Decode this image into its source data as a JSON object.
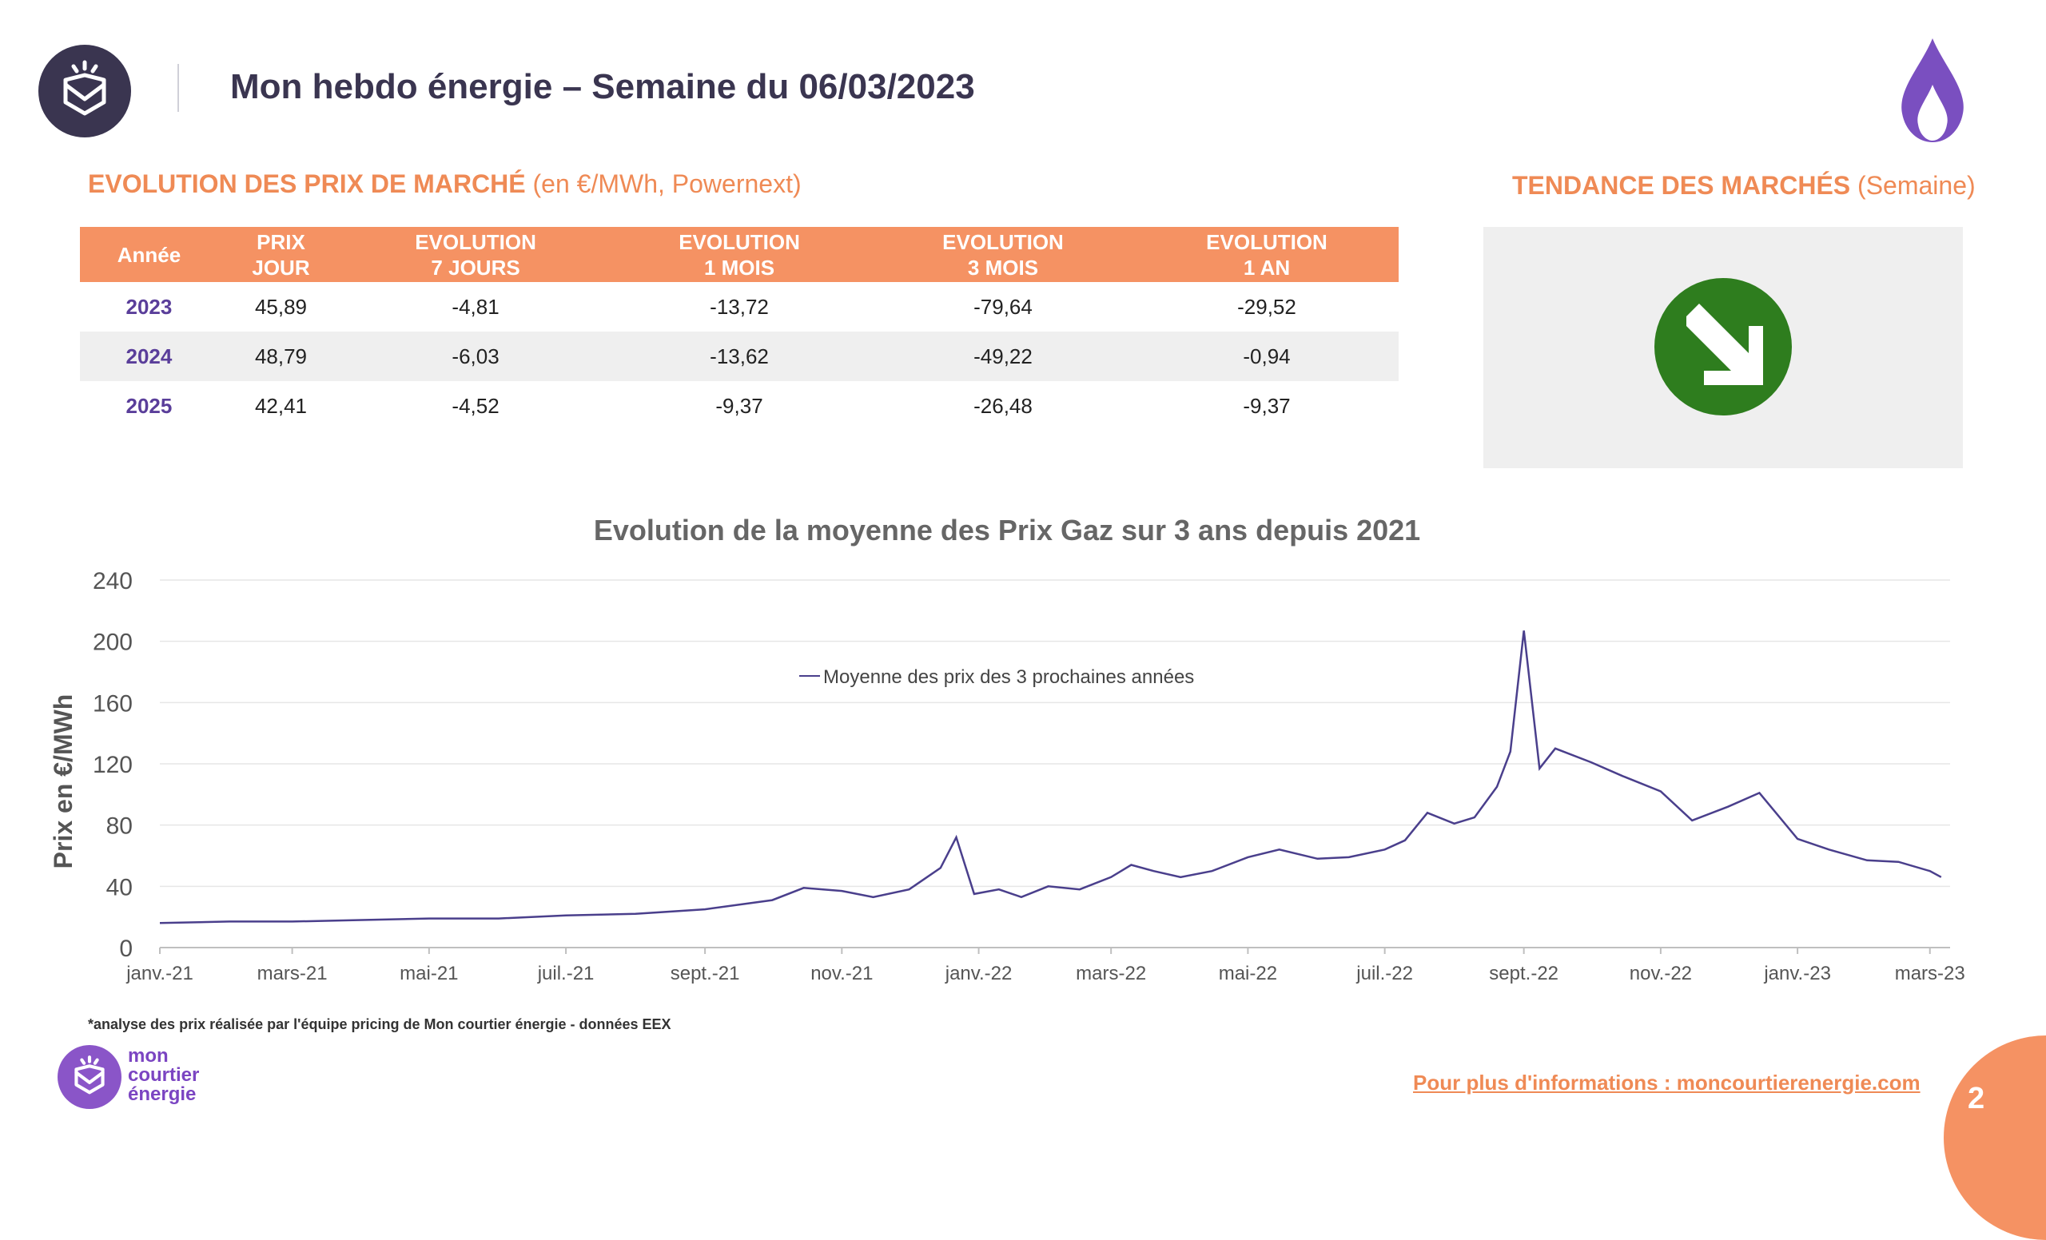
{
  "header": {
    "title": "Mon hebdo énergie – Semaine du 06/03/2023",
    "logo_icon": "envelope-sun-icon",
    "flame_icon": "gas-flame-icon"
  },
  "prices_section": {
    "heading_bold": "EVOLUTION DES PRIX DE MARCHÉ",
    "heading_light": "(en €/MWh, Powernext)",
    "columns": [
      [
        "Année"
      ],
      [
        "PRIX",
        "JOUR"
      ],
      [
        "EVOLUTION",
        "7 JOURS"
      ],
      [
        "EVOLUTION",
        "1 MOIS"
      ],
      [
        "EVOLUTION",
        "3 MOIS"
      ],
      [
        "EVOLUTION",
        "1 AN"
      ]
    ],
    "rows": [
      [
        "2023",
        "45,89",
        "-4,81",
        "-13,72",
        "-79,64",
        "-29,52"
      ],
      [
        "2024",
        "48,79",
        "-6,03",
        "-13,62",
        "-49,22",
        "-0,94"
      ],
      [
        "2025",
        "42,41",
        "-4,52",
        "-9,37",
        "-26,48",
        "-9,37"
      ]
    ]
  },
  "trend_section": {
    "heading_bold": "TENDANCE DES MARCHÉS",
    "heading_light": "(Semaine)",
    "trend_icon": "down-right-arrow-icon",
    "trend_color": "#2e7d1e"
  },
  "chart_data": {
    "type": "line",
    "title": "Evolution de la moyenne des Prix Gaz sur 3 ans depuis 2021",
    "ylabel": "Prix en €/MWh",
    "xlabel": "",
    "ylim": [
      0,
      240
    ],
    "yticks": [
      0,
      40,
      80,
      120,
      160,
      200,
      240
    ],
    "x_tick_labels": [
      "janv.-21",
      "mars-21",
      "mai-21",
      "juil.-21",
      "sept.-21",
      "nov.-21",
      "janv.-22",
      "mars-22",
      "mai-22",
      "juil.-22",
      "sept.-22",
      "nov.-22",
      "janv.-23",
      "mars-23"
    ],
    "grid": true,
    "legend_position": "top-center",
    "series": [
      {
        "name": "Moyenne des prix des 3 prochaines années",
        "color": "#4a3f8c",
        "x": [
          "2021-01-01",
          "2021-02-01",
          "2021-03-01",
          "2021-04-01",
          "2021-05-01",
          "2021-06-01",
          "2021-07-01",
          "2021-08-01",
          "2021-09-01",
          "2021-10-01",
          "2021-10-15",
          "2021-11-01",
          "2021-11-15",
          "2021-12-01",
          "2021-12-15",
          "2021-12-22",
          "2021-12-30",
          "2022-01-10",
          "2022-01-20",
          "2022-02-01",
          "2022-02-15",
          "2022-03-01",
          "2022-03-10",
          "2022-03-20",
          "2022-04-01",
          "2022-04-15",
          "2022-05-01",
          "2022-05-15",
          "2022-06-01",
          "2022-06-15",
          "2022-07-01",
          "2022-07-10",
          "2022-07-20",
          "2022-08-01",
          "2022-08-10",
          "2022-08-20",
          "2022-08-26",
          "2022-09-01",
          "2022-09-08",
          "2022-09-15",
          "2022-10-01",
          "2022-10-15",
          "2022-11-01",
          "2022-11-15",
          "2022-12-01",
          "2022-12-15",
          "2023-01-01",
          "2023-01-15",
          "2023-02-01",
          "2023-02-15",
          "2023-03-01",
          "2023-03-06"
        ],
        "y": [
          16,
          17,
          17,
          18,
          19,
          19,
          21,
          22,
          25,
          31,
          39,
          37,
          33,
          38,
          52,
          72,
          35,
          38,
          33,
          40,
          38,
          46,
          54,
          50,
          46,
          50,
          59,
          64,
          58,
          59,
          64,
          70,
          88,
          81,
          85,
          105,
          128,
          207,
          117,
          130,
          121,
          112,
          102,
          83,
          92,
          101,
          71,
          64,
          57,
          56,
          50,
          46
        ]
      }
    ]
  },
  "footer": {
    "footnote": "*analyse des prix réalisée par l'équipe pricing de Mon courtier énergie -  données EEX",
    "brand_line1": "mon",
    "brand_line2": "courtier",
    "brand_line3": "énergie",
    "more_info": "Pour plus d'informations : moncourtierenergie.com",
    "page_number": "2"
  }
}
